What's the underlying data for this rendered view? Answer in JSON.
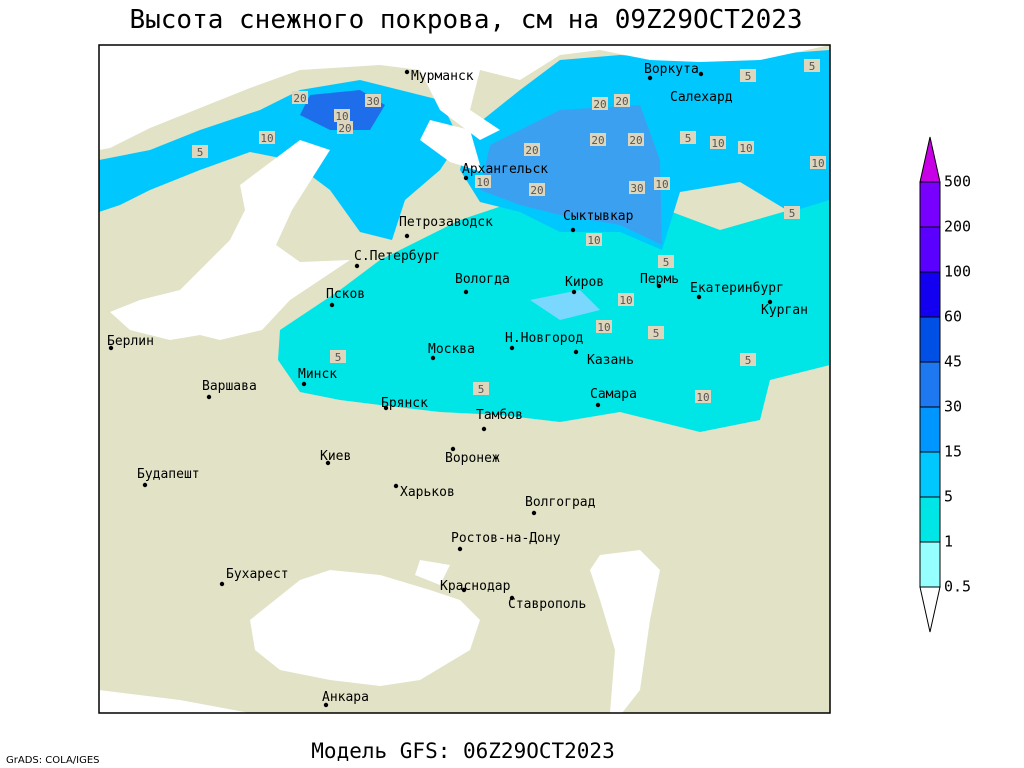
{
  "title": "Высота снежного покрова, см на 09Z29OCT2023",
  "footer": "Модель GFS: 06Z29OCT2023",
  "credit": "GrADS: COLA/IGES",
  "colorbar": {
    "labels": [
      500,
      200,
      100,
      60,
      45,
      30,
      15,
      5,
      1,
      0.5
    ]
  },
  "cities": [
    "Мурманск",
    "Воркута",
    "Салехард",
    "Архангельск",
    "Сыктывкар",
    "Петрозаводск",
    "С.Петербург",
    "Вологда",
    "Киров",
    "Пермь",
    "Екатеринбург",
    "Курган",
    "Псков",
    "Н.Новгород",
    "Москва",
    "Казань",
    "Минск",
    "Брянск",
    "Тамбов",
    "Самара",
    "Берлин",
    "Варшава",
    "Киев",
    "Воронеж",
    "Будапешт",
    "Харьков",
    "Волгоград",
    "Ростов-на-Дону",
    "Бухарест",
    "Краснодар",
    "Ставрополь",
    "Анкара"
  ],
  "contour_labels": [
    20,
    30,
    10,
    20,
    10,
    5,
    20,
    20,
    5,
    5,
    20,
    20,
    5,
    10,
    10,
    10,
    20,
    20,
    10,
    30,
    10,
    5,
    10,
    5,
    10,
    10,
    5,
    5,
    5,
    5,
    10
  ]
}
